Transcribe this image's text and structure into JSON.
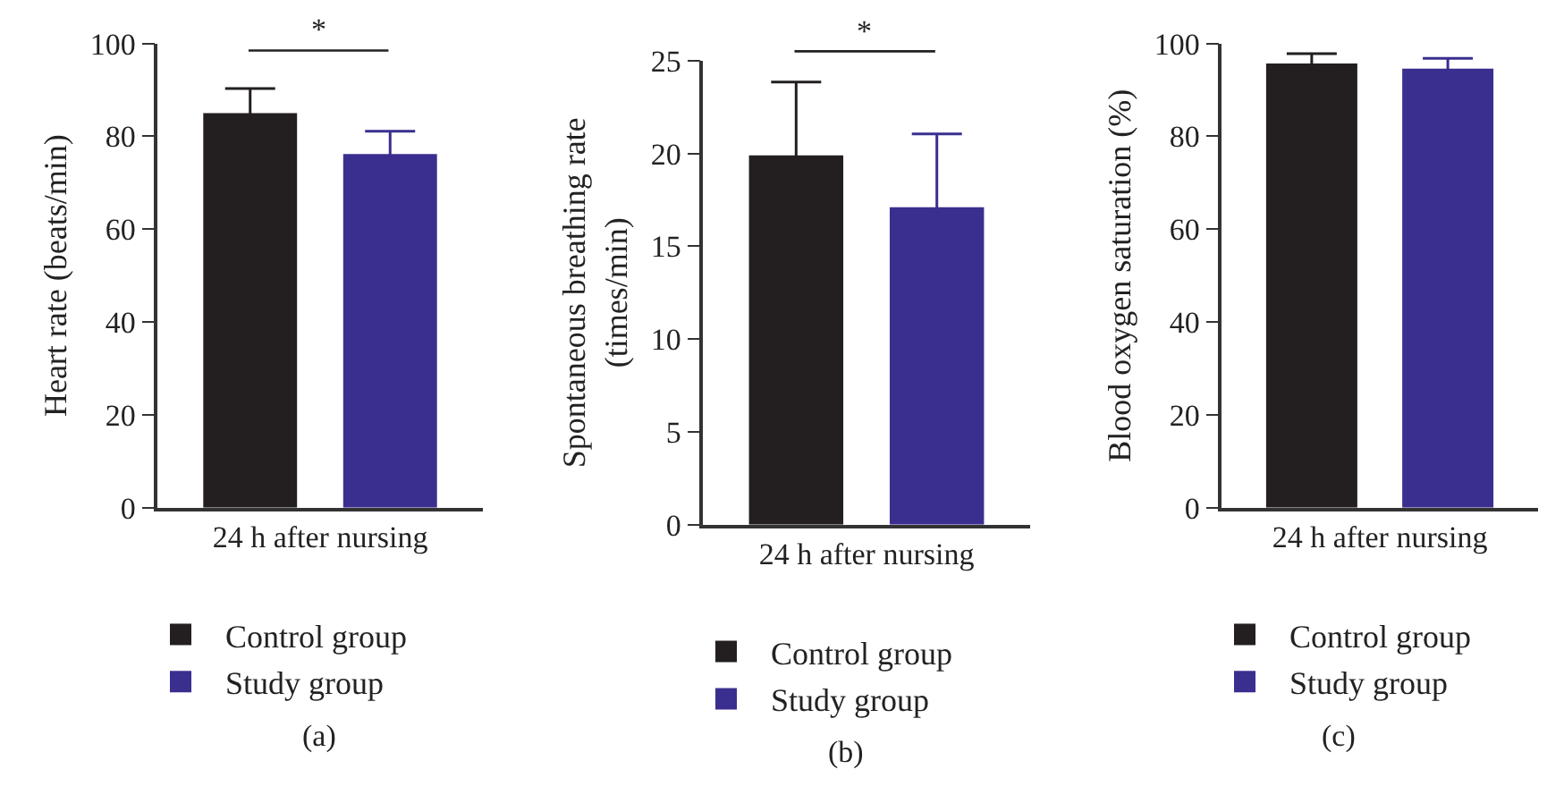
{
  "chart_data": [
    {
      "type": "bar",
      "ylabel": "Heart rate (beats/min)",
      "categories": [
        "24 h after nursing"
      ],
      "ylim": [
        0,
        100
      ],
      "yticks": [
        0,
        20,
        40,
        60,
        80,
        100
      ],
      "legend": "bottom",
      "series": [
        {
          "name": "Control group",
          "color": "#231f20",
          "values": [
            85
          ],
          "errors": [
            5.3
          ]
        },
        {
          "name": "Study group",
          "color": "#3a2f8f",
          "values": [
            76.2
          ],
          "errors": [
            4.9
          ]
        }
      ],
      "annotations": [
        "*",
        "(a)"
      ]
    },
    {
      "type": "bar",
      "ylabel": "Spontaneous breathing rate\n(times/min)",
      "categories": [
        "24 h after nursing"
      ],
      "ylim": [
        0,
        25
      ],
      "yticks": [
        0,
        5,
        10,
        15,
        20,
        25
      ],
      "legend": "bottom",
      "series": [
        {
          "name": "Control group",
          "color": "#231f20",
          "values": [
            19.9
          ],
          "errors": [
            3.95
          ]
        },
        {
          "name": "Study group",
          "color": "#3a2f8f",
          "values": [
            17.1
          ],
          "errors": [
            3.95
          ]
        }
      ],
      "annotations": [
        "*",
        "(b)"
      ]
    },
    {
      "type": "bar",
      "ylabel": "Blood oxygen saturation (%)",
      "categories": [
        "24 h after nursing"
      ],
      "ylim": [
        0,
        100
      ],
      "yticks": [
        0,
        20,
        40,
        60,
        80,
        100
      ],
      "legend": "bottom",
      "series": [
        {
          "name": "Control group",
          "color": "#231f20",
          "values": [
            95.7
          ],
          "errors": [
            2.1
          ]
        },
        {
          "name": "Study group",
          "color": "#3a2f8f",
          "values": [
            94.6
          ],
          "errors": [
            2.2
          ]
        }
      ],
      "annotations": [
        "(c)"
      ]
    }
  ]
}
